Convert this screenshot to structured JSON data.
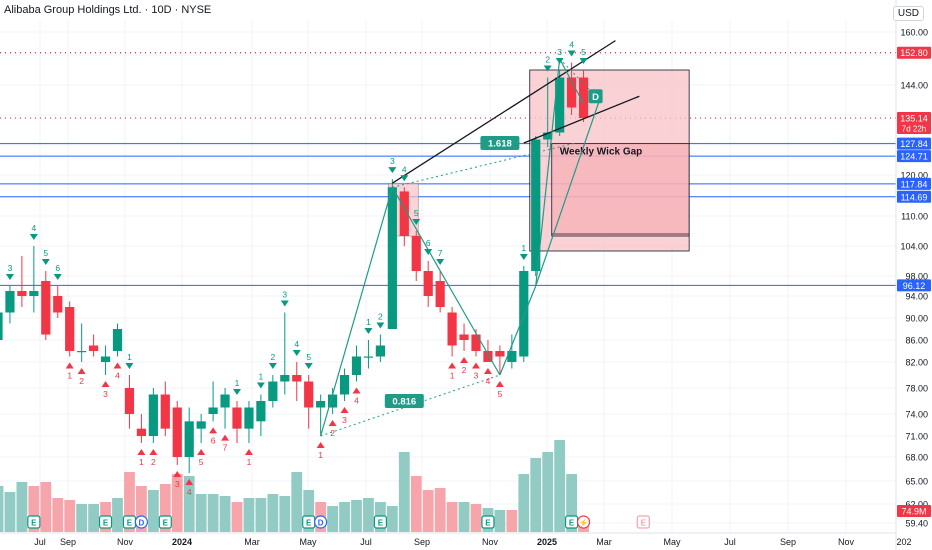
{
  "header": {
    "title": "Alibaba Group Holdings Ltd. · 10D · NYSE",
    "currency": "USD"
  },
  "colors": {
    "up": "#089981",
    "down": "#f23645",
    "vol_up": "#91cbc4",
    "vol_down": "#f6a5ab",
    "hline": "#2962ff",
    "gap_fill": "#f8c2c6",
    "gap_stroke": "#131722",
    "pattern": "#1f9c88",
    "trend": "#131722"
  },
  "chart_data": {
    "type": "candlestick",
    "x_ticks": [
      "Jul",
      "Sep",
      "Nov",
      "2024",
      "Mar",
      "May",
      "Jul",
      "Sep",
      "Nov",
      "2025",
      "Mar",
      "May",
      "Jul",
      "Sep",
      "Nov",
      "202"
    ],
    "y_ticks": [
      160,
      152,
      144,
      136,
      128,
      120,
      110,
      104,
      98,
      94,
      90,
      86,
      82,
      78,
      74,
      71,
      68,
      65,
      62,
      59.4
    ],
    "price_levels": [
      {
        "value": 152.8,
        "label": "152.80",
        "bg": "#f23645",
        "style": "dotted",
        "color": "#f23645"
      },
      {
        "value": 135.14,
        "label": "135.14",
        "sub": "7d 22h",
        "bg": "#f23645",
        "style": "dotted",
        "color": "#f23645"
      },
      {
        "value": 127.84,
        "label": "127.84",
        "bg": "#2962ff",
        "style": "solid",
        "color": "#2962ff"
      },
      {
        "value": 124.71,
        "label": "124.71",
        "bg": "#2962ff",
        "style": "solid",
        "color": "#2962ff"
      },
      {
        "value": 117.84,
        "label": "117.84",
        "bg": "#2962ff",
        "style": "solid",
        "color": "#2962ff"
      },
      {
        "value": 114.69,
        "label": "114.69",
        "bg": "#2962ff",
        "style": "solid",
        "color": "#2962ff"
      },
      {
        "value": 96.12,
        "label": "96.12",
        "bg": "#2962ff",
        "style": "solid",
        "color": "#2962ff"
      }
    ],
    "volume_label": "74.9M",
    "candles": [
      {
        "o": 86,
        "h": 98,
        "l": 84,
        "c": 91
      },
      {
        "o": 91,
        "h": 96,
        "l": 89,
        "c": 95
      },
      {
        "o": 95,
        "h": 102,
        "l": 92,
        "c": 94
      },
      {
        "o": 94,
        "h": 104,
        "l": 91,
        "c": 95
      },
      {
        "o": 97,
        "h": 99,
        "l": 86,
        "c": 87
      },
      {
        "o": 94,
        "h": 96,
        "l": 90,
        "c": 91
      },
      {
        "o": 92,
        "h": 93,
        "l": 83,
        "c": 84
      },
      {
        "o": 84,
        "h": 89,
        "l": 82,
        "c": 84
      },
      {
        "o": 85,
        "h": 87,
        "l": 83,
        "c": 84
      },
      {
        "o": 82,
        "h": 85,
        "l": 80,
        "c": 83
      },
      {
        "o": 84,
        "h": 89,
        "l": 83,
        "c": 88
      },
      {
        "o": 78,
        "h": 80,
        "l": 72,
        "c": 74
      },
      {
        "o": 72,
        "h": 74,
        "l": 70,
        "c": 71
      },
      {
        "o": 71,
        "h": 78,
        "l": 70,
        "c": 77
      },
      {
        "o": 77,
        "h": 79,
        "l": 71,
        "c": 72
      },
      {
        "o": 75,
        "h": 76,
        "l": 67,
        "c": 68
      },
      {
        "o": 68,
        "h": 75,
        "l": 66,
        "c": 73
      },
      {
        "o": 72,
        "h": 74,
        "l": 70,
        "c": 73
      },
      {
        "o": 74,
        "h": 79,
        "l": 73,
        "c": 75
      },
      {
        "o": 75,
        "h": 78,
        "l": 72,
        "c": 77
      },
      {
        "o": 75,
        "h": 76,
        "l": 70,
        "c": 72
      },
      {
        "o": 72,
        "h": 76,
        "l": 70,
        "c": 75
      },
      {
        "o": 73,
        "h": 77,
        "l": 71,
        "c": 76
      },
      {
        "o": 76,
        "h": 80,
        "l": 75,
        "c": 79
      },
      {
        "o": 79,
        "h": 91,
        "l": 77,
        "c": 80
      },
      {
        "o": 80,
        "h": 82,
        "l": 76,
        "c": 79
      },
      {
        "o": 79,
        "h": 80,
        "l": 72,
        "c": 75
      },
      {
        "o": 75,
        "h": 77,
        "l": 71,
        "c": 76
      },
      {
        "o": 75,
        "h": 78,
        "l": 74,
        "c": 77
      },
      {
        "o": 77,
        "h": 81,
        "l": 76,
        "c": 80
      },
      {
        "o": 80,
        "h": 85,
        "l": 79,
        "c": 83
      },
      {
        "o": 83,
        "h": 86,
        "l": 81,
        "c": 83
      },
      {
        "o": 83,
        "h": 87,
        "l": 82,
        "c": 85
      },
      {
        "o": 88,
        "h": 119,
        "l": 88,
        "c": 117
      },
      {
        "o": 116,
        "h": 117,
        "l": 104,
        "c": 106
      },
      {
        "o": 106,
        "h": 107,
        "l": 97,
        "c": 99
      },
      {
        "o": 99,
        "h": 101,
        "l": 92,
        "c": 94
      },
      {
        "o": 97,
        "h": 99,
        "l": 91,
        "c": 92
      },
      {
        "o": 91,
        "h": 92,
        "l": 83,
        "c": 85
      },
      {
        "o": 87,
        "h": 89,
        "l": 84,
        "c": 86
      },
      {
        "o": 87,
        "h": 88,
        "l": 83,
        "c": 84
      },
      {
        "o": 84,
        "h": 86,
        "l": 82,
        "c": 82
      },
      {
        "o": 84,
        "h": 85,
        "l": 80,
        "c": 83
      },
      {
        "o": 82,
        "h": 87,
        "l": 81,
        "c": 84
      },
      {
        "o": 83,
        "h": 100,
        "l": 82,
        "c": 99
      },
      {
        "o": 99,
        "h": 130,
        "l": 98,
        "c": 129
      },
      {
        "o": 129,
        "h": 146,
        "l": 127,
        "c": 131
      },
      {
        "o": 131,
        "h": 148,
        "l": 130,
        "c": 146
      },
      {
        "o": 146,
        "h": 150,
        "l": 136,
        "c": 138
      },
      {
        "o": 146,
        "h": 148,
        "l": 134,
        "c": 135.14
      }
    ],
    "volumes": [
      {
        "v": 46,
        "dir": "up"
      },
      {
        "v": 40,
        "dir": "up"
      },
      {
        "v": 50,
        "dir": "up"
      },
      {
        "v": 46,
        "dir": "down"
      },
      {
        "v": 50,
        "dir": "down"
      },
      {
        "v": 34,
        "dir": "down"
      },
      {
        "v": 32,
        "dir": "down"
      },
      {
        "v": 28,
        "dir": "up"
      },
      {
        "v": 28,
        "dir": "up"
      },
      {
        "v": 30,
        "dir": "down"
      },
      {
        "v": 34,
        "dir": "up"
      },
      {
        "v": 60,
        "dir": "down"
      },
      {
        "v": 46,
        "dir": "down"
      },
      {
        "v": 42,
        "dir": "up"
      },
      {
        "v": 48,
        "dir": "down"
      },
      {
        "v": 58,
        "dir": "down"
      },
      {
        "v": 56,
        "dir": "up"
      },
      {
        "v": 38,
        "dir": "up"
      },
      {
        "v": 38,
        "dir": "up"
      },
      {
        "v": 36,
        "dir": "up"
      },
      {
        "v": 30,
        "dir": "down"
      },
      {
        "v": 34,
        "dir": "up"
      },
      {
        "v": 34,
        "dir": "up"
      },
      {
        "v": 38,
        "dir": "up"
      },
      {
        "v": 36,
        "dir": "up"
      },
      {
        "v": 60,
        "dir": "up"
      },
      {
        "v": 42,
        "dir": "up"
      },
      {
        "v": 30,
        "dir": "down"
      },
      {
        "v": 26,
        "dir": "up"
      },
      {
        "v": 30,
        "dir": "up"
      },
      {
        "v": 32,
        "dir": "up"
      },
      {
        "v": 34,
        "dir": "up"
      },
      {
        "v": 30,
        "dir": "up"
      },
      {
        "v": 26,
        "dir": "up"
      },
      {
        "v": 80,
        "dir": "up"
      },
      {
        "v": 56,
        "dir": "down"
      },
      {
        "v": 42,
        "dir": "down"
      },
      {
        "v": 44,
        "dir": "down"
      },
      {
        "v": 30,
        "dir": "down"
      },
      {
        "v": 30,
        "dir": "up"
      },
      {
        "v": 28,
        "dir": "down"
      },
      {
        "v": 24,
        "dir": "up"
      },
      {
        "v": 22,
        "dir": "up"
      },
      {
        "v": 22,
        "dir": "down"
      },
      {
        "v": 58,
        "dir": "up"
      },
      {
        "v": 74,
        "dir": "up"
      },
      {
        "v": 80,
        "dir": "up"
      },
      {
        "v": 92,
        "dir": "up"
      },
      {
        "v": 58,
        "dir": "up"
      },
      {
        "v": 14,
        "dir": "down"
      }
    ],
    "td_labels": [
      {
        "i": 1,
        "t": "3",
        "c": "#089981",
        "pos": "above"
      },
      {
        "i": 3,
        "t": "4",
        "c": "#089981",
        "pos": "above"
      },
      {
        "i": 4,
        "t": "5",
        "c": "#089981",
        "pos": "above"
      },
      {
        "i": 5,
        "t": "6",
        "c": "#089981",
        "pos": "above"
      },
      {
        "i": 6,
        "t": "1",
        "c": "#f23645",
        "pos": "below"
      },
      {
        "i": 7,
        "t": "2",
        "c": "#f23645",
        "pos": "below"
      },
      {
        "i": 9,
        "t": "3",
        "c": "#f23645",
        "pos": "below"
      },
      {
        "i": 10,
        "t": "4",
        "c": "#f23645",
        "pos": "below"
      },
      {
        "i": 11,
        "t": "1",
        "c": "#089981",
        "pos": "above"
      },
      {
        "i": 12,
        "t": "1",
        "c": "#f23645",
        "pos": "below"
      },
      {
        "i": 13,
        "t": "2",
        "c": "#f23645",
        "pos": "below"
      },
      {
        "i": 15,
        "t": "3",
        "c": "#f23645",
        "pos": "below"
      },
      {
        "i": 16,
        "t": "4",
        "c": "#f23645",
        "pos": "below"
      },
      {
        "i": 17,
        "t": "5",
        "c": "#f23645",
        "pos": "below"
      },
      {
        "i": 18,
        "t": "6",
        "c": "#f23645",
        "pos": "below"
      },
      {
        "i": 19,
        "t": "7",
        "c": "#f23645",
        "pos": "below"
      },
      {
        "i": 20,
        "t": "1",
        "c": "#089981",
        "pos": "above"
      },
      {
        "i": 21,
        "t": "1",
        "c": "#f23645",
        "pos": "below"
      },
      {
        "i": 22,
        "t": "1",
        "c": "#089981",
        "pos": "above"
      },
      {
        "i": 23,
        "t": "2",
        "c": "#089981",
        "pos": "above"
      },
      {
        "i": 24,
        "t": "3",
        "c": "#089981",
        "pos": "above"
      },
      {
        "i": 25,
        "t": "4",
        "c": "#089981",
        "pos": "above"
      },
      {
        "i": 26,
        "t": "5",
        "c": "#089981",
        "pos": "above"
      },
      {
        "i": 27,
        "t": "1",
        "c": "#f23645",
        "pos": "below"
      },
      {
        "i": 28,
        "t": "2",
        "c": "#f23645",
        "pos": "below"
      },
      {
        "i": 29,
        "t": "3",
        "c": "#f23645",
        "pos": "below"
      },
      {
        "i": 30,
        "t": "4",
        "c": "#f23645",
        "pos": "below"
      },
      {
        "i": 31,
        "t": "1",
        "c": "#089981",
        "pos": "above"
      },
      {
        "i": 32,
        "t": "2",
        "c": "#089981",
        "pos": "above"
      },
      {
        "i": 33,
        "t": "3",
        "c": "#089981",
        "pos": "above"
      },
      {
        "i": 34,
        "t": "4",
        "c": "#089981",
        "pos": "above"
      },
      {
        "i": 35,
        "t": "5",
        "c": "#089981",
        "pos": "above"
      },
      {
        "i": 36,
        "t": "6",
        "c": "#089981",
        "pos": "above"
      },
      {
        "i": 37,
        "t": "7",
        "c": "#089981",
        "pos": "above"
      },
      {
        "i": 38,
        "t": "1",
        "c": "#f23645",
        "pos": "below"
      },
      {
        "i": 39,
        "t": "2",
        "c": "#f23645",
        "pos": "below"
      },
      {
        "i": 40,
        "t": "3",
        "c": "#f23645",
        "pos": "below"
      },
      {
        "i": 41,
        "t": "4",
        "c": "#f23645",
        "pos": "below"
      },
      {
        "i": 42,
        "t": "5",
        "c": "#f23645",
        "pos": "below"
      },
      {
        "i": 44,
        "t": "1",
        "c": "#089981",
        "pos": "above"
      },
      {
        "i": 46,
        "t": "2",
        "c": "#089981",
        "pos": "above"
      },
      {
        "i": 47,
        "t": "3",
        "c": "#089981",
        "pos": "above"
      },
      {
        "i": 48,
        "t": "4",
        "c": "#089981",
        "pos": "above"
      },
      {
        "i": 49,
        "t": "5",
        "c": "#089981",
        "pos": "above"
      }
    ],
    "pattern_points": [
      {
        "i": 27,
        "p": 71
      },
      {
        "i": 33,
        "p": 117
      },
      {
        "i": 42,
        "p": 80
      },
      {
        "i": 45,
        "p": 96
      },
      {
        "i": 47,
        "p": 151
      },
      {
        "i": 49,
        "p": 139
      }
    ],
    "pattern_labels": [
      {
        "t": "0.816",
        "i": 34,
        "p": 76
      },
      {
        "t": "1.618",
        "i": 42,
        "p": 128
      },
      {
        "t": "D",
        "i": 50,
        "p": 141
      }
    ],
    "gap_box": {
      "i0": 45,
      "i1": 57,
      "p_top": 148,
      "p_bottom": 103,
      "inner": 127.84,
      "inner_bottom": 106,
      "label": "Weekly Wick Gap"
    },
    "small_box": {
      "i0": 33,
      "i1": 35,
      "p_top": 118,
      "p_bottom": 106
    },
    "trend_lines": [
      {
        "i0": 33,
        "p0": 118,
        "i1": 51,
        "p1": 157
      },
      {
        "i0": 44,
        "p0": 128,
        "i1": 53,
        "p1": 141
      }
    ],
    "events": [
      {
        "i": 3,
        "t": "E",
        "type": "earn"
      },
      {
        "i": 9,
        "t": "E",
        "type": "earn"
      },
      {
        "i": 11,
        "t": "E",
        "type": "earn"
      },
      {
        "i": 12,
        "t": "D",
        "type": "div"
      },
      {
        "i": 14,
        "t": "E",
        "type": "earn"
      },
      {
        "i": 26,
        "t": "E",
        "type": "earn"
      },
      {
        "i": 27,
        "t": "D",
        "type": "div"
      },
      {
        "i": 32,
        "t": "E",
        "type": "earn"
      },
      {
        "i": 41,
        "t": "E",
        "type": "earn"
      },
      {
        "i": 48,
        "t": "E",
        "type": "earn"
      },
      {
        "i": 49,
        "t": "⚡",
        "type": "flash"
      },
      {
        "i": 54,
        "t": "E",
        "type": "future"
      }
    ]
  }
}
